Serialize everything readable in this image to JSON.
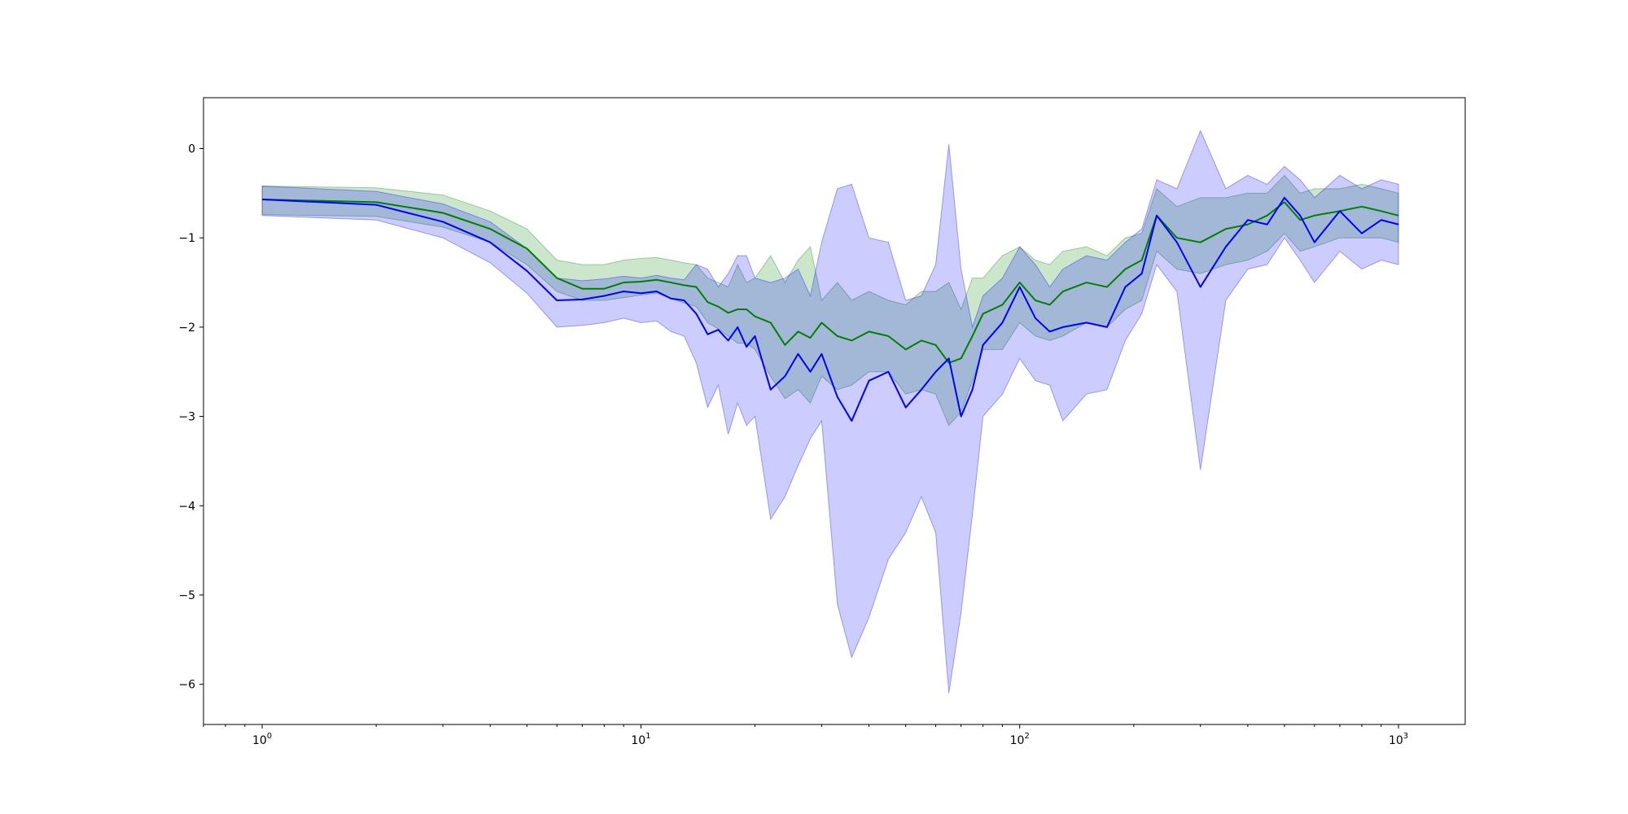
{
  "chart_data": {
    "type": "line",
    "title": "",
    "xlabel": "",
    "ylabel": "",
    "xscale": "log",
    "xlim": [
      0.7,
      1500
    ],
    "ylim": [
      -6.45,
      0.57
    ],
    "grid": false,
    "legend": "none",
    "x_ticks": [
      {
        "value": 1,
        "mantissa": "10",
        "exponent": "0"
      },
      {
        "value": 10,
        "mantissa": "10",
        "exponent": "1"
      },
      {
        "value": 100,
        "mantissa": "10",
        "exponent": "2"
      },
      {
        "value": 1000,
        "mantissa": "10",
        "exponent": "3"
      }
    ],
    "y_ticks": [
      {
        "value": 0,
        "label": "0"
      },
      {
        "value": -1,
        "label": "−1"
      },
      {
        "value": -2,
        "label": "−2"
      },
      {
        "value": -3,
        "label": "−3"
      },
      {
        "value": -4,
        "label": "−4"
      },
      {
        "value": -5,
        "label": "−5"
      },
      {
        "value": -6,
        "label": "−6"
      }
    ],
    "series": [
      {
        "color": "#008000",
        "band_color": "#008000",
        "band_opacity": 0.2,
        "x": [
          1,
          2,
          3,
          4,
          5,
          6,
          7,
          8,
          9,
          10,
          11,
          12,
          13,
          14,
          15,
          16,
          17,
          18,
          19,
          20,
          22,
          24,
          26,
          28,
          30,
          33,
          36,
          40,
          45,
          50,
          55,
          60,
          65,
          70,
          75,
          80,
          90,
          100,
          110,
          120,
          130,
          150,
          170,
          190,
          210,
          230,
          260,
          300,
          350,
          400,
          450,
          500,
          550,
          600,
          700,
          800,
          900,
          1000
        ],
        "y": [
          -0.57,
          -0.6,
          -0.72,
          -0.9,
          -1.12,
          -1.45,
          -1.57,
          -1.57,
          -1.5,
          -1.49,
          -1.47,
          -1.5,
          -1.53,
          -1.55,
          -1.72,
          -1.77,
          -1.84,
          -1.8,
          -1.8,
          -1.88,
          -1.95,
          -2.2,
          -2.05,
          -2.12,
          -1.95,
          -2.1,
          -2.15,
          -2.05,
          -2.1,
          -2.25,
          -2.15,
          -2.2,
          -2.4,
          -2.35,
          -2.1,
          -1.85,
          -1.75,
          -1.5,
          -1.7,
          -1.75,
          -1.6,
          -1.5,
          -1.55,
          -1.35,
          -1.25,
          -0.75,
          -1.0,
          -1.05,
          -0.9,
          -0.85,
          -0.75,
          -0.6,
          -0.8,
          -0.75,
          -0.7,
          -0.65,
          -0.7,
          -0.75
        ],
        "upper": [
          -0.42,
          -0.44,
          -0.52,
          -0.7,
          -0.9,
          -1.25,
          -1.3,
          -1.3,
          -1.25,
          -1.23,
          -1.22,
          -1.25,
          -1.28,
          -1.3,
          -1.45,
          -1.5,
          -1.55,
          -1.3,
          -1.5,
          -1.45,
          -1.2,
          -1.5,
          -1.25,
          -1.1,
          -1.7,
          -1.5,
          -1.7,
          -1.6,
          -1.7,
          -1.75,
          -1.6,
          -1.6,
          -1.5,
          -1.8,
          -1.45,
          -1.45,
          -1.2,
          -1.1,
          -1.25,
          -1.3,
          -1.15,
          -1.1,
          -1.2,
          -1.0,
          -0.95,
          -0.45,
          -0.65,
          -0.55,
          -0.55,
          -0.5,
          -0.5,
          -0.3,
          -0.5,
          -0.45,
          -0.45,
          -0.4,
          -0.45,
          -0.5
        ],
        "lower": [
          -0.74,
          -0.76,
          -0.88,
          -1.05,
          -1.3,
          -1.6,
          -1.7,
          -1.7,
          -1.67,
          -1.64,
          -1.62,
          -1.68,
          -1.73,
          -1.77,
          -1.95,
          -2.02,
          -2.1,
          -2.18,
          -2.18,
          -2.25,
          -2.55,
          -2.8,
          -2.7,
          -2.85,
          -2.55,
          -2.7,
          -2.65,
          -2.5,
          -2.5,
          -2.75,
          -2.7,
          -2.75,
          -3.1,
          -2.95,
          -2.6,
          -2.25,
          -2.25,
          -1.95,
          -2.1,
          -2.15,
          -2.1,
          -1.95,
          -2.0,
          -1.8,
          -1.7,
          -1.15,
          -1.35,
          -1.4,
          -1.3,
          -1.25,
          -1.15,
          -0.95,
          -1.15,
          -1.1,
          -1.0,
          -1.0,
          -1.0,
          -1.05
        ]
      },
      {
        "color": "#0000ff",
        "band_color": "#0000ff",
        "band_opacity": 0.2,
        "x": [
          1,
          2,
          3,
          4,
          5,
          6,
          7,
          8,
          9,
          10,
          11,
          12,
          13,
          14,
          15,
          16,
          17,
          18,
          19,
          20,
          22,
          24,
          26,
          28,
          30,
          33,
          36,
          40,
          45,
          50,
          55,
          60,
          65,
          70,
          75,
          80,
          90,
          100,
          110,
          120,
          130,
          150,
          170,
          190,
          210,
          230,
          260,
          300,
          350,
          400,
          450,
          500,
          550,
          600,
          700,
          800,
          900,
          1000
        ],
        "y": [
          -0.57,
          -0.63,
          -0.82,
          -1.05,
          -1.37,
          -1.7,
          -1.69,
          -1.65,
          -1.6,
          -1.62,
          -1.6,
          -1.68,
          -1.7,
          -1.85,
          -2.08,
          -2.03,
          -2.15,
          -2.0,
          -2.22,
          -2.1,
          -2.7,
          -2.55,
          -2.3,
          -2.5,
          -2.3,
          -2.78,
          -3.05,
          -2.6,
          -2.5,
          -2.9,
          -2.7,
          -2.5,
          -2.35,
          -3.0,
          -2.7,
          -2.2,
          -1.95,
          -1.55,
          -1.9,
          -2.05,
          -2.0,
          -1.95,
          -2.0,
          -1.55,
          -1.4,
          -0.75,
          -1.05,
          -1.55,
          -1.1,
          -0.8,
          -0.85,
          -0.55,
          -0.75,
          -1.05,
          -0.7,
          -0.95,
          -0.8,
          -0.85
        ],
        "upper": [
          -0.42,
          -0.48,
          -0.62,
          -0.82,
          -1.12,
          -1.45,
          -1.48,
          -1.46,
          -1.43,
          -1.45,
          -1.42,
          -1.45,
          -1.47,
          -1.3,
          -1.35,
          -1.55,
          -1.4,
          -1.2,
          -1.2,
          -1.45,
          -1.5,
          -1.45,
          -1.35,
          -1.65,
          -1.05,
          -0.45,
          -0.4,
          -1.0,
          -1.05,
          -1.7,
          -1.65,
          -1.3,
          0.05,
          -1.35,
          -2.0,
          -1.65,
          -1.45,
          -1.1,
          -1.3,
          -1.55,
          -1.35,
          -1.2,
          -1.25,
          -1.05,
          -0.9,
          -0.35,
          -0.45,
          0.2,
          -0.45,
          -0.3,
          -0.4,
          -0.2,
          -0.35,
          -0.55,
          -0.3,
          -0.45,
          -0.35,
          -0.4
        ],
        "lower": [
          -0.75,
          -0.8,
          -1.0,
          -1.28,
          -1.62,
          -2.0,
          -1.98,
          -1.95,
          -1.9,
          -1.95,
          -1.93,
          -2.05,
          -2.1,
          -2.4,
          -2.9,
          -2.65,
          -3.2,
          -2.85,
          -3.1,
          -3.0,
          -4.15,
          -3.9,
          -3.55,
          -3.25,
          -3.05,
          -5.1,
          -5.7,
          -5.25,
          -4.6,
          -4.3,
          -3.9,
          -4.3,
          -6.1,
          -5.2,
          -4.1,
          -3.0,
          -2.75,
          -2.35,
          -2.6,
          -2.65,
          -3.05,
          -2.75,
          -2.7,
          -2.15,
          -1.85,
          -1.3,
          -1.6,
          -3.6,
          -1.7,
          -1.35,
          -1.3,
          -1.0,
          -1.25,
          -1.5,
          -1.15,
          -1.35,
          -1.25,
          -1.3
        ]
      }
    ]
  }
}
